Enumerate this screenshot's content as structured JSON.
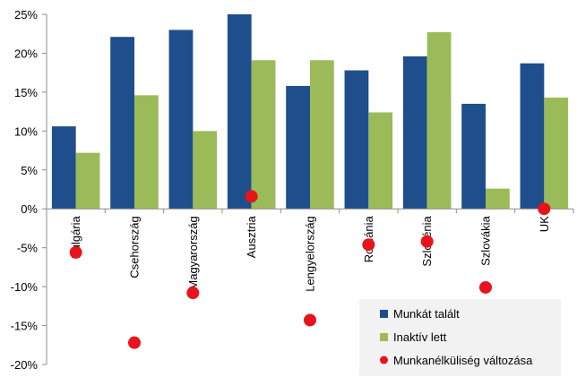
{
  "chart_data": {
    "type": "bar",
    "categories": [
      "Bulgária",
      "Csehország",
      "Magyarország",
      "Ausztria",
      "Lengyelország",
      "Románia",
      "Szlovénia",
      "Szlovákia",
      "UK"
    ],
    "series": [
      {
        "name": "Munkát talált",
        "kind": "bar",
        "color": "#1F4E8C",
        "values": [
          10.6,
          22.1,
          23.0,
          25.0,
          15.8,
          17.8,
          19.6,
          13.5,
          18.7
        ]
      },
      {
        "name": "Inaktív lett",
        "kind": "bar",
        "color": "#9BBB59",
        "values": [
          7.2,
          14.6,
          10.0,
          19.1,
          19.1,
          12.4,
          22.7,
          2.6,
          14.3
        ]
      },
      {
        "name": "Munkanélküliség változása",
        "kind": "marker",
        "color": "#E8141B",
        "values": [
          -5.6,
          -17.2,
          -10.8,
          1.6,
          -14.3,
          -4.6,
          -4.2,
          -10.1,
          0.0
        ]
      }
    ],
    "ylim": [
      -20,
      25
    ],
    "yticks": [
      25,
      20,
      15,
      10,
      5,
      0,
      -5,
      -10,
      -15,
      -20
    ],
    "ytick_labels": [
      "25%",
      "20%",
      "15%",
      "10%",
      "5%",
      "0%",
      "-5%",
      "-10%",
      "-15%",
      "-20%"
    ],
    "grid": false,
    "legend_position": "bottom-right"
  }
}
